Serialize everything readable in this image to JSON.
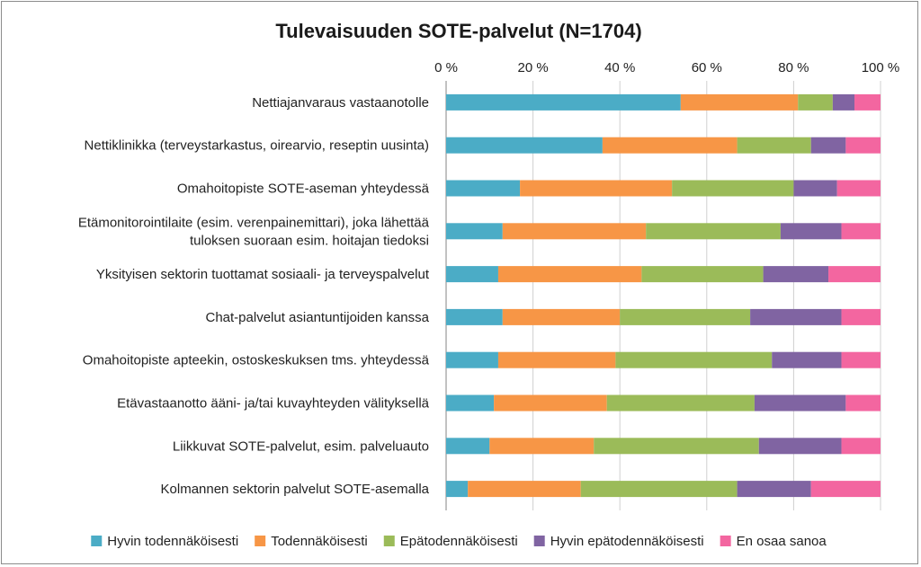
{
  "chart_data": {
    "type": "bar",
    "orientation": "horizontal",
    "stacked": "percent",
    "title": "Tulevaisuuden SOTE-palvelut (N=1704)",
    "x_ticks": [
      "0 %",
      "20 %",
      "40 %",
      "60 %",
      "80 %",
      "100 %"
    ],
    "xlim": [
      0,
      100
    ],
    "grid": true,
    "legend_position": "bottom",
    "categories": [
      [
        "Nettiajanvaraus vastaanotolle"
      ],
      [
        "Nettiklinikka (terveystarkastus, oirearvio, reseptin uusinta)"
      ],
      [
        "Omahoitopiste SOTE-aseman yhteydessä"
      ],
      [
        "Etämonitorointilaite (esim. verenpainemittari), joka lähettää",
        "tuloksen suoraan esim. hoitajan tiedoksi"
      ],
      [
        "Yksityisen sektorin tuottamat sosiaali- ja terveyspalvelut"
      ],
      [
        "Chat-palvelut asiantuntijoiden kanssa"
      ],
      [
        "Omahoitopiste apteekin, ostoskeskuksen tms. yhteydessä"
      ],
      [
        "Etävastaanotto ääni- ja/tai kuvayhteyden välityksellä"
      ],
      [
        "Liikkuvat SOTE-palvelut, esim. palveluauto"
      ],
      [
        "Kolmannen sektorin palvelut SOTE-asemalla"
      ]
    ],
    "series": [
      {
        "name": "Hyvin todennäköisesti",
        "color": "#4bacc6",
        "values": [
          54,
          36,
          17,
          13,
          12,
          13,
          12,
          11,
          10,
          5
        ]
      },
      {
        "name": "Todennäköisesti",
        "color": "#f79646",
        "values": [
          27,
          31,
          35,
          33,
          33,
          27,
          27,
          26,
          24,
          26
        ]
      },
      {
        "name": "Epätodennäköisesti",
        "color": "#9bbb59",
        "values": [
          8,
          17,
          28,
          31,
          28,
          30,
          36,
          34,
          38,
          36
        ]
      },
      {
        "name": "Hyvin epätodennäköisesti",
        "color": "#8064a2",
        "values": [
          5,
          8,
          10,
          14,
          15,
          21,
          16,
          21,
          19,
          17
        ]
      },
      {
        "name": "En osaa sanoa",
        "color": "#f366a0",
        "values": [
          6,
          8,
          10,
          9,
          12,
          9,
          9,
          8,
          9,
          16
        ]
      }
    ]
  }
}
